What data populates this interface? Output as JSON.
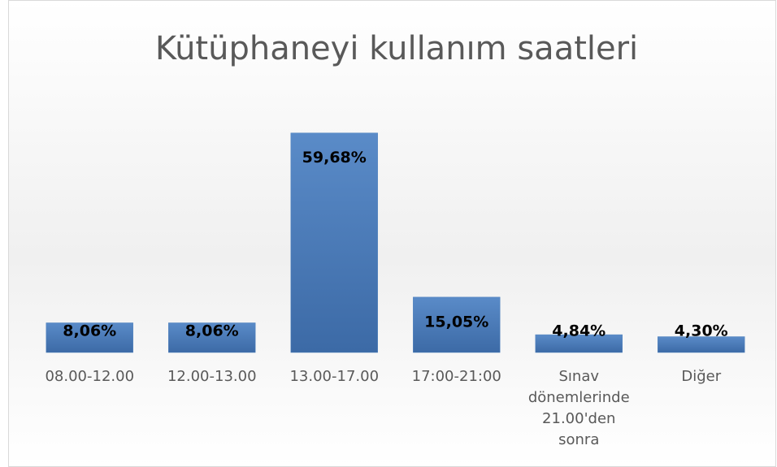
{
  "chart_data": {
    "type": "bar",
    "title": "Kütüphaneyi kullanım saatleri",
    "categories": [
      "08.00-12.00",
      "12.00-13.00",
      "13.00-17.00",
      "17:00-21:00",
      "Sınav dönemlerinde 21.00'den sonra",
      "Diğer"
    ],
    "values": [
      8.06,
      8.06,
      59.68,
      15.05,
      4.84,
      4.3
    ],
    "value_labels": [
      "8,06%",
      "8,06%",
      "59,68%",
      "15,05%",
      "4,84%",
      "4,30%"
    ],
    "color": "#4f81bd",
    "ylim": [
      0,
      70
    ]
  }
}
